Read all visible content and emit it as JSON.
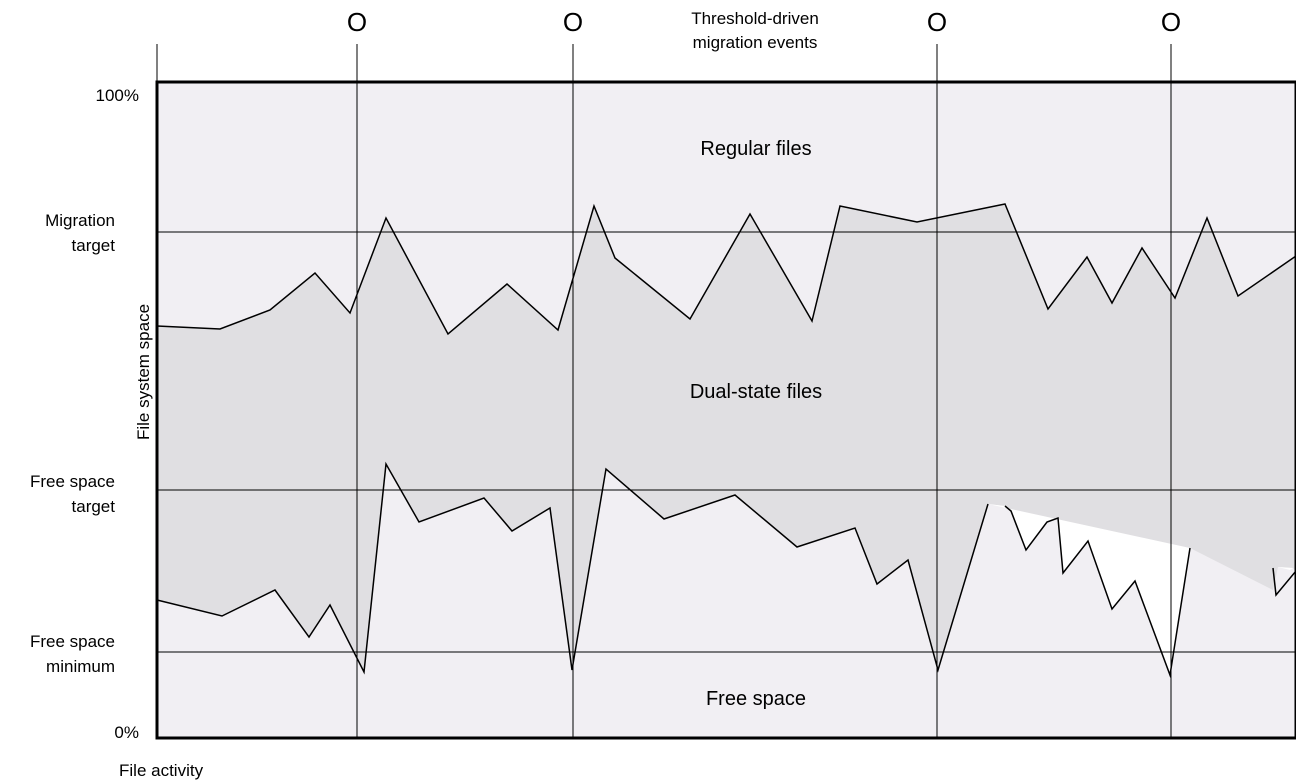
{
  "header": {
    "title_line1": "Threshold-driven",
    "title_line2": "migration events",
    "event_marker": "O",
    "event_count": 4
  },
  "y_axis": {
    "title": "File system space",
    "levels": {
      "top": "100%",
      "migration_target_line1": "Migration",
      "migration_target_line2": "target",
      "free_space_target_line1": "Free space",
      "free_space_target_line2": "target",
      "free_space_min_line1": "Free space",
      "free_space_min_line2": "minimum",
      "bottom": "0%"
    }
  },
  "x_axis": {
    "title": "File activity"
  },
  "regions": {
    "regular": "Regular files",
    "dual": "Dual-state files",
    "free": "Free space"
  },
  "colors": {
    "regular_fill": "#f1eff3",
    "dual_fill": "#e0dfe2",
    "free_fill": "#ffffff",
    "line": "#000000"
  }
}
